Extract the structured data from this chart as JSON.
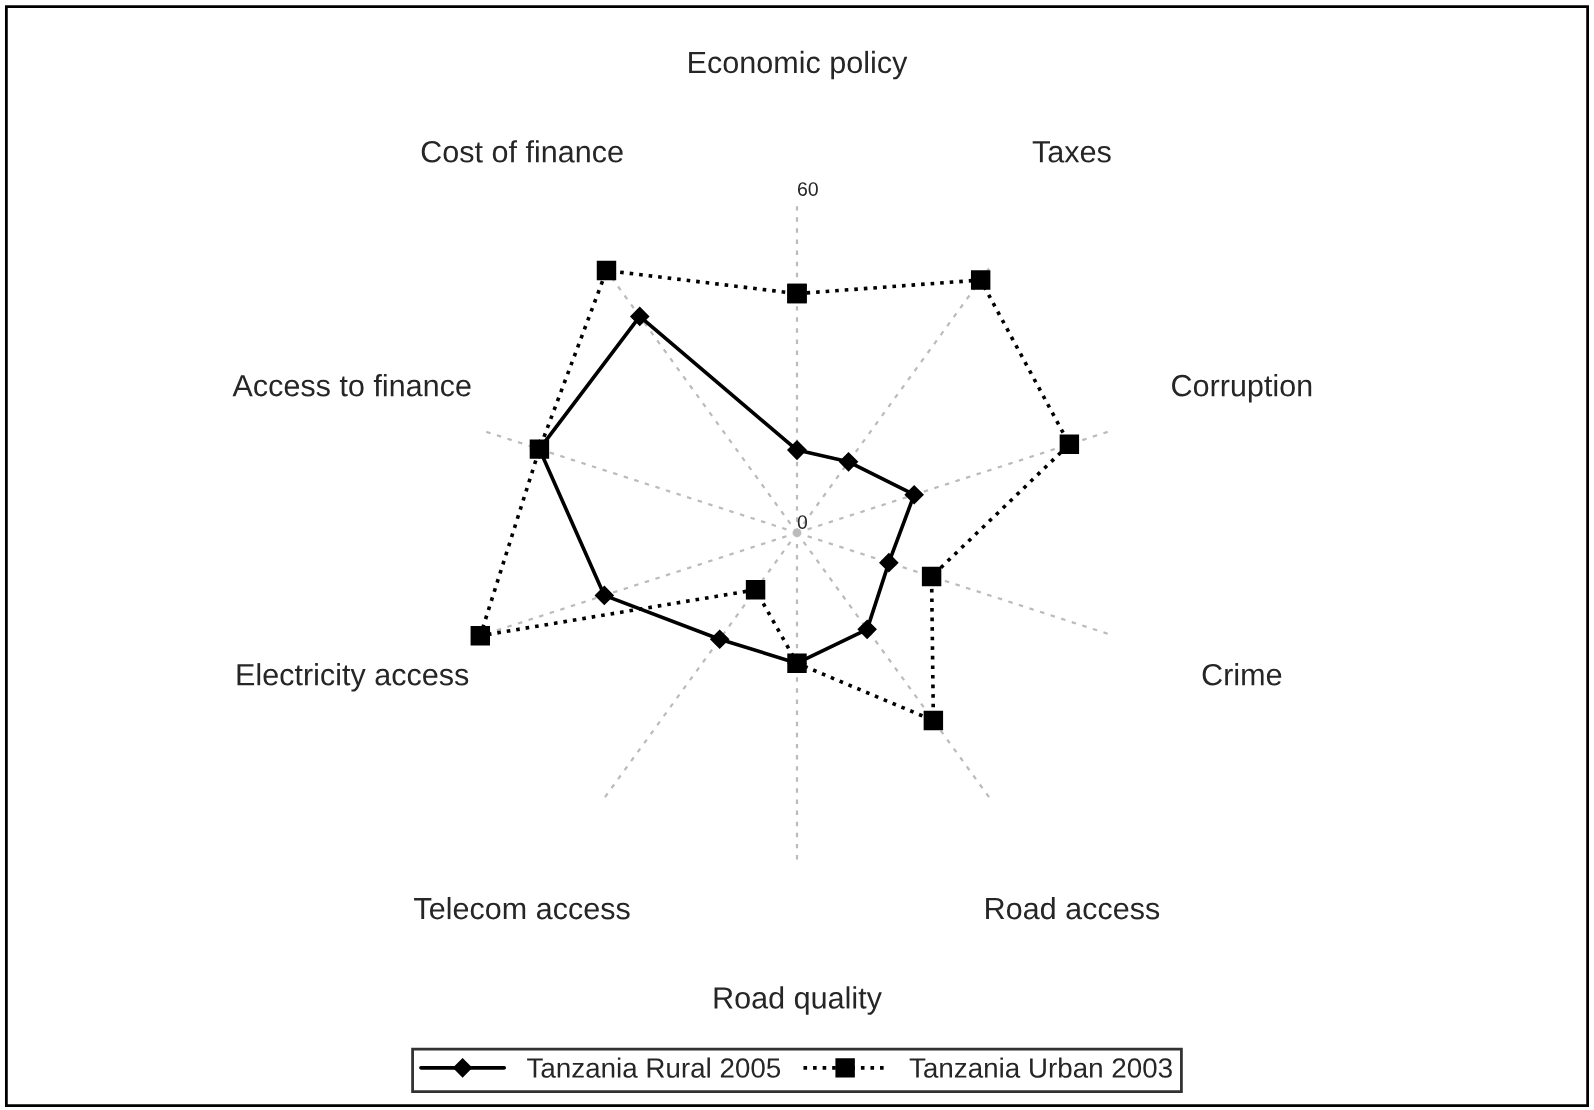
{
  "chart_data": {
    "type": "radar",
    "categories": [
      "Economic policy",
      "Taxes",
      "Corruption",
      "Crime",
      "Road access",
      "Road quality",
      "Telecom access",
      "Electricity access",
      "Access to finance",
      "Cost of finance"
    ],
    "series": [
      {
        "name": "Tanzania Rural 2005",
        "color": "#000000",
        "marker": "diamond",
        "line_style": "solid",
        "values": [
          14.9,
          15.8,
          22.2,
          17.4,
          21.5,
          23.5,
          23.7,
          36.5,
          48.8,
          48.2
        ]
      },
      {
        "name": "Tanzania Urban 2003",
        "color": "#000000",
        "marker": "square",
        "line_style": "dotted",
        "values": [
          43.1,
          56.3,
          51.6,
          25.5,
          41.8,
          23.5,
          12.7,
          60,
          48.8,
          58.4
        ]
      }
    ],
    "ylim": [
      0,
      60
    ],
    "yticks": [
      0,
      60
    ],
    "grid": "x",
    "legend": "bottom"
  }
}
